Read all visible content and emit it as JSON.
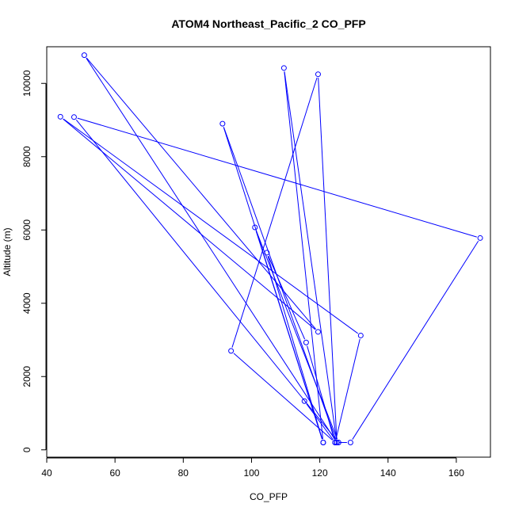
{
  "chart_data": {
    "type": "line",
    "title": "ATOM4 Northeast_Pacific_2 CO_PFP",
    "xlabel": "CO_PFP",
    "ylabel": "Altitude (m)",
    "xlim": [
      40,
      170
    ],
    "ylim": [
      -200,
      11000
    ],
    "x_ticks": [
      40,
      60,
      80,
      100,
      120,
      140,
      160
    ],
    "y_ticks": [
      0,
      2000,
      4000,
      6000,
      8000,
      10000
    ],
    "grid": false,
    "line_color": "#0000ff",
    "point_marker": "open-circle",
    "series": [
      {
        "x": [
          124.5,
          94,
          119.5,
          125,
          109.5,
          121,
          91.5,
          125,
          51,
          119.5,
          44,
          132,
          124.5,
          129,
          167,
          48,
          125.5,
          101,
          121,
          104.5,
          116,
          124.5,
          115.5
        ],
        "y": [
          200,
          2700,
          10250,
          200,
          10420,
          200,
          8900,
          200,
          10770,
          3220,
          9090,
          3120,
          200,
          200,
          5780,
          9080,
          200,
          6070,
          200,
          5380,
          2930,
          200,
          1330
        ]
      }
    ]
  }
}
